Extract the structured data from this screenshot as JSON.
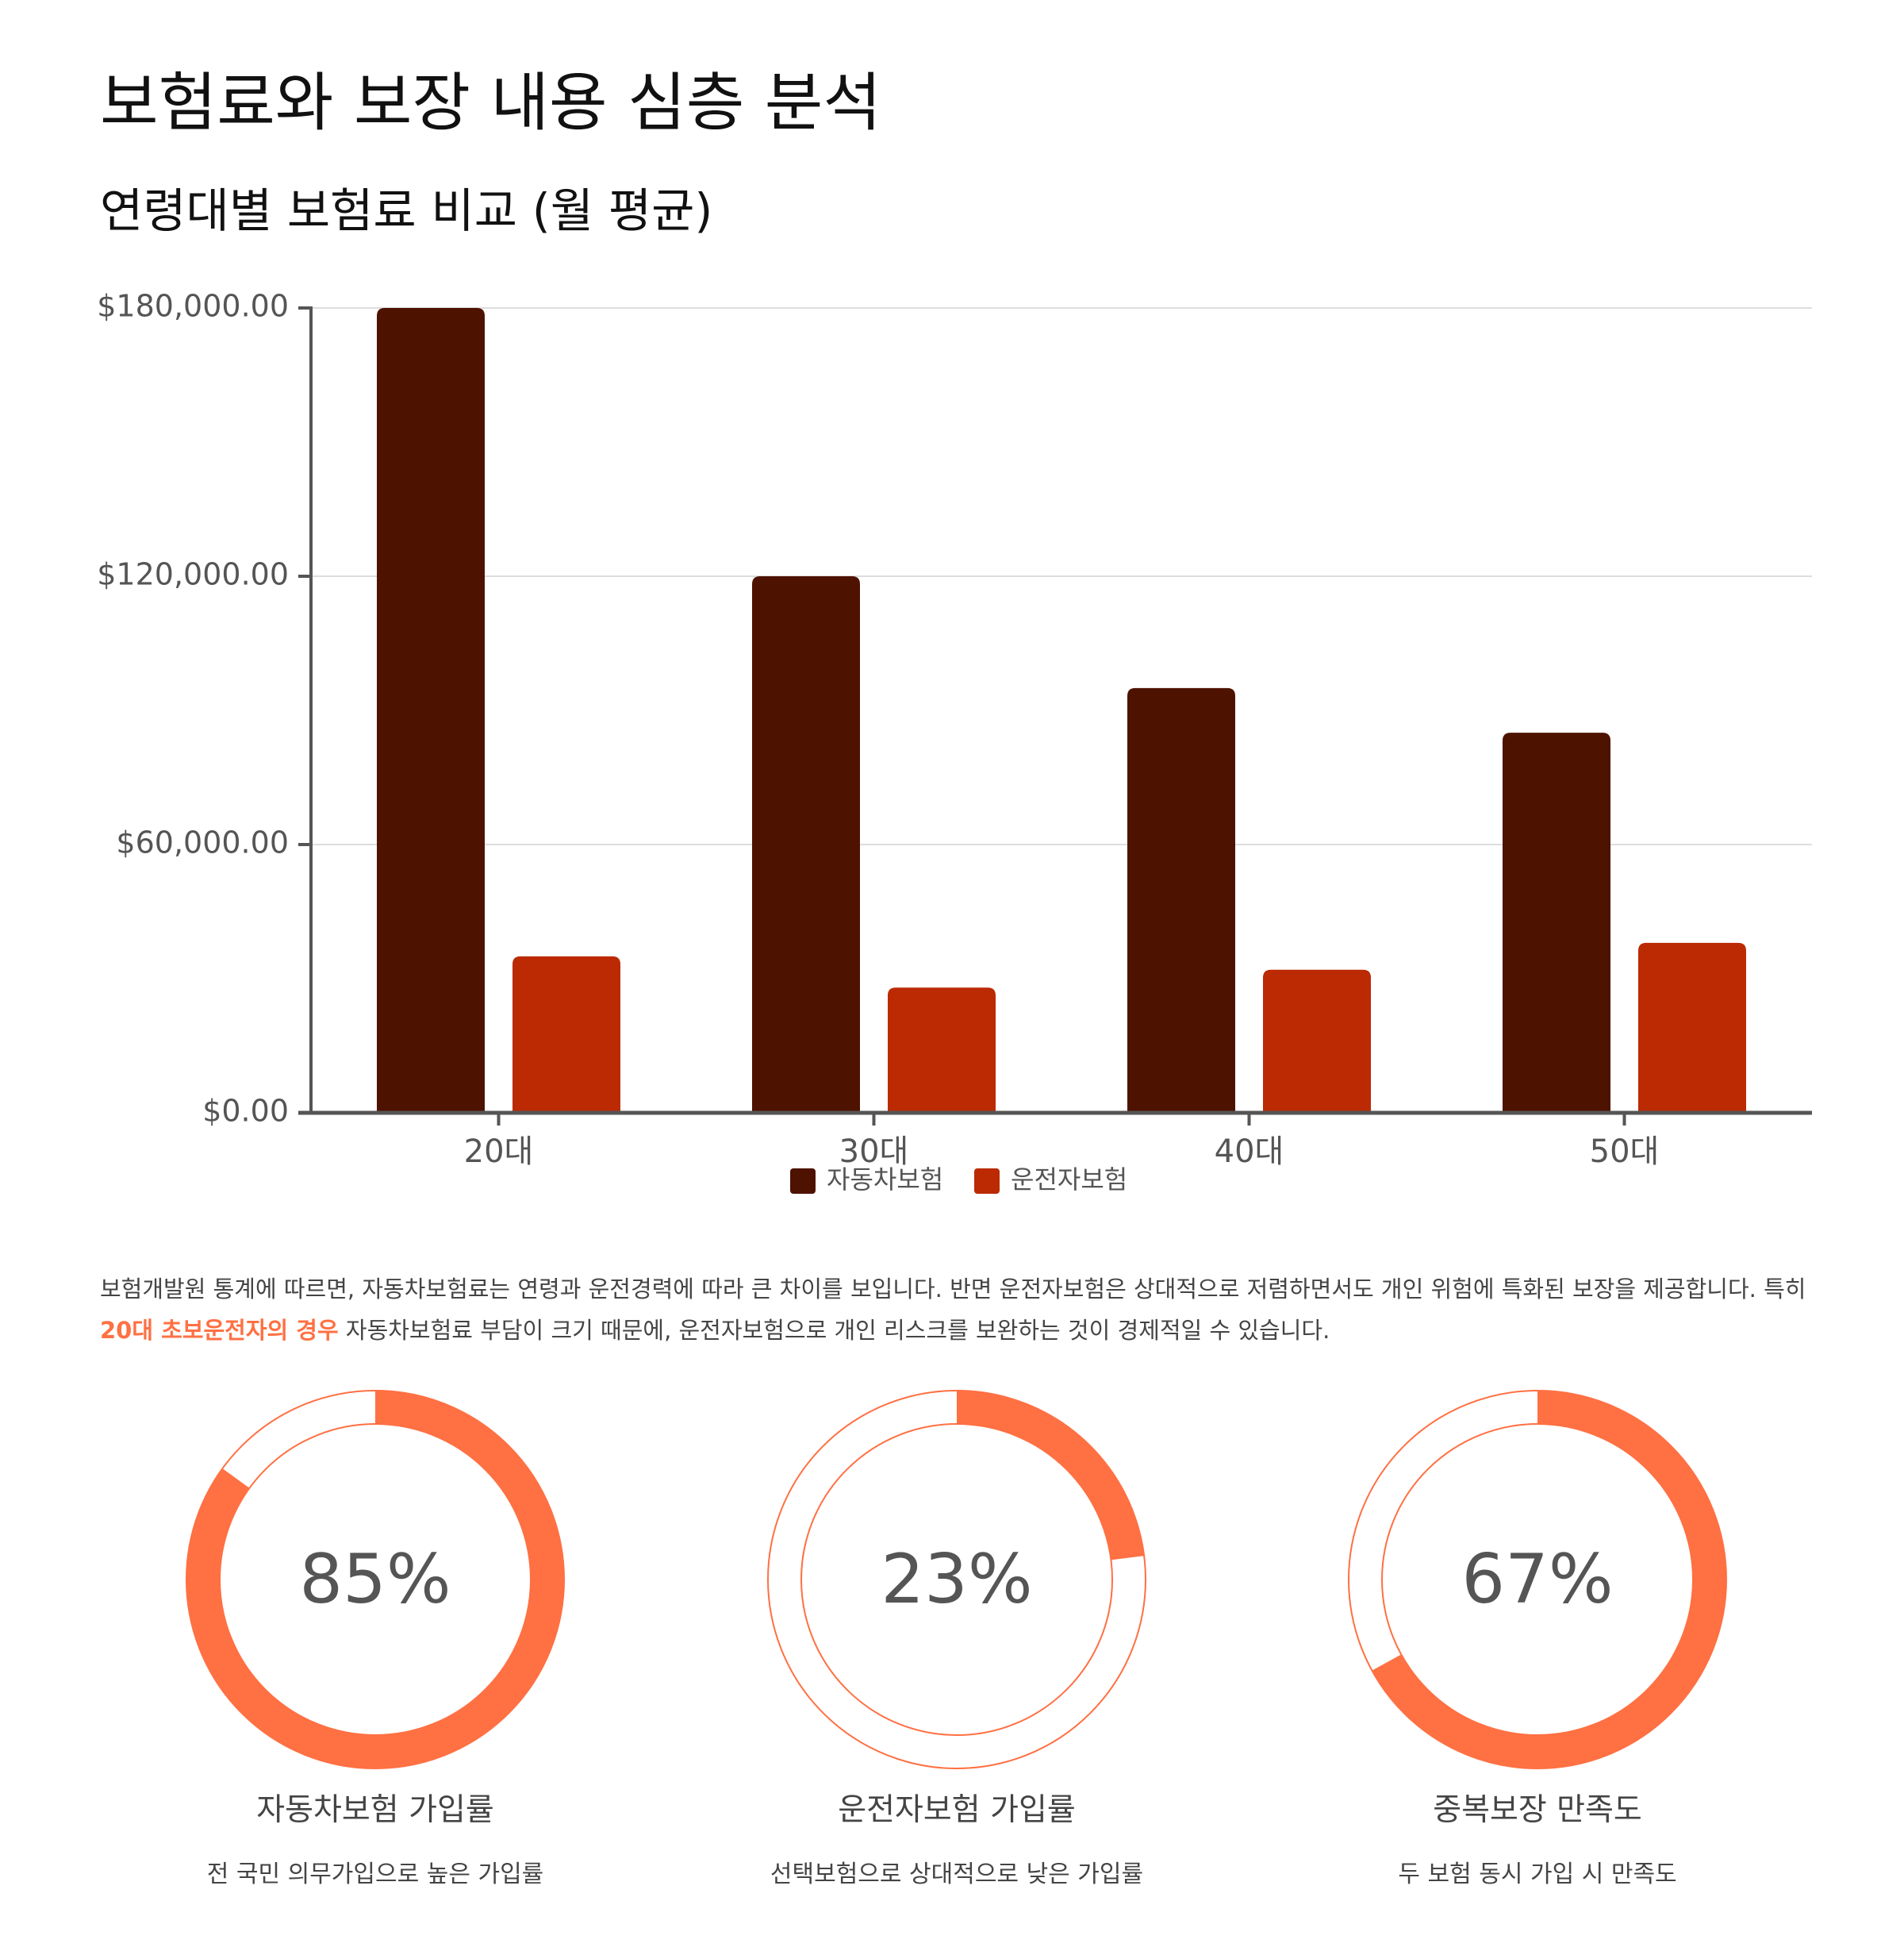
{
  "page": {
    "title": "보험료와 보장 내용 심층 분석"
  },
  "colors": {
    "auto_insurance": "#4e1200",
    "driver_insurance": "#bb2a03",
    "accent": "#ff7043",
    "axis": "#555555",
    "grid": "#dddddd",
    "text_muted": "#444444"
  },
  "chart_data": {
    "type": "bar",
    "title": "연령대별 보험료 비교 (월 평균)",
    "categories": [
      "20대",
      "30대",
      "40대",
      "50대"
    ],
    "series": [
      {
        "name": "자동차보험",
        "values": [
          180000,
          120000,
          95000,
          85000
        ]
      },
      {
        "name": "운전자보험",
        "values": [
          35000,
          28000,
          32000,
          38000
        ]
      }
    ],
    "xlabel": "",
    "ylabel": "",
    "ylim": [
      0,
      180000
    ],
    "yticks": [
      0,
      60000,
      120000,
      180000
    ],
    "ytick_labels": [
      "$0.00",
      "$60,000.00",
      "$120,000.00",
      "$180,000.00"
    ],
    "grid": true,
    "legend_position": "bottom-center"
  },
  "description": {
    "before": "보험개발원 통계에 따르면, 자동차보험료는 연령과 운전경력에 따라 큰 차이를 보입니다. 반면 운전자보험은 상대적으로 저렴하면서도 개인 위험에 특화된 보장을 제공합니다. 특히 ",
    "highlight": "20대 초보운전자의 경우",
    "after": " 자동차보험료 부담이 크기 때문에, 운전자보험으로 개인 리스크를 보완하는 것이 경제적일 수 있습니다."
  },
  "stats": [
    {
      "value": 85,
      "label": "85%",
      "title": "자동차보험 가입률",
      "subtitle": "전 국민 의무가입으로 높은 가입률"
    },
    {
      "value": 23,
      "label": "23%",
      "title": "운전자보험 가입률",
      "subtitle": "선택보험으로 상대적으로 낮은 가입률"
    },
    {
      "value": 67,
      "label": "67%",
      "title": "중복보장 만족도",
      "subtitle": "두 보험 동시 가입 시 만족도"
    }
  ]
}
